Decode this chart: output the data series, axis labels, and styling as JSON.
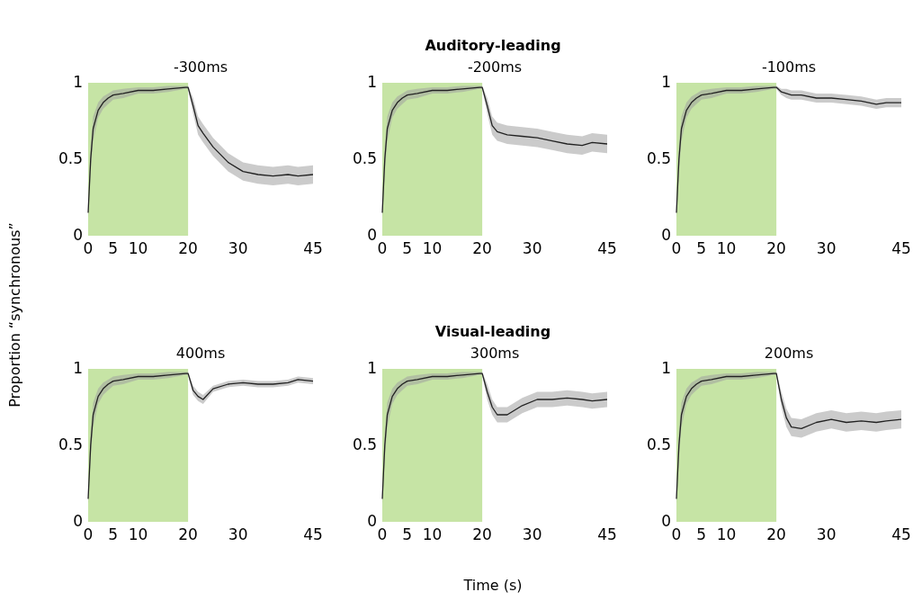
{
  "chart_data": [
    {
      "type": "line",
      "title": "-300ms",
      "annotations": [
        "Auditory-leading"
      ],
      "ylabel": "Proportion “synchronous”",
      "xlim": [
        0,
        45
      ],
      "xticks": [
        0,
        5,
        10,
        20,
        30,
        45
      ],
      "ylim": [
        0,
        1
      ],
      "yticks": [
        0,
        0.5,
        1
      ],
      "grid": false,
      "bands": [
        {
          "axis": "x",
          "from": 0,
          "to": 20,
          "color": "#c6e4a5"
        }
      ],
      "series": [
        {
          "color": "#222222",
          "x": [
            0,
            0.5,
            1,
            2,
            3,
            4,
            5,
            7,
            10,
            13,
            16,
            19.5,
            20,
            21,
            22,
            23,
            25,
            28,
            31,
            34,
            37,
            40,
            42,
            45
          ],
          "values": [
            0.15,
            0.5,
            0.7,
            0.82,
            0.87,
            0.9,
            0.92,
            0.93,
            0.95,
            0.95,
            0.96,
            0.97,
            0.97,
            0.85,
            0.72,
            0.67,
            0.58,
            0.48,
            0.42,
            0.4,
            0.39,
            0.4,
            0.39,
            0.4
          ],
          "lower": [
            0.12,
            0.42,
            0.62,
            0.77,
            0.83,
            0.86,
            0.89,
            0.9,
            0.93,
            0.93,
            0.94,
            0.96,
            0.96,
            0.8,
            0.66,
            0.61,
            0.52,
            0.42,
            0.36,
            0.34,
            0.33,
            0.34,
            0.33,
            0.34
          ],
          "upper": [
            0.18,
            0.58,
            0.78,
            0.87,
            0.91,
            0.93,
            0.95,
            0.96,
            0.97,
            0.97,
            0.98,
            0.98,
            0.98,
            0.9,
            0.78,
            0.73,
            0.64,
            0.54,
            0.48,
            0.46,
            0.45,
            0.46,
            0.45,
            0.46
          ]
        }
      ]
    },
    {
      "type": "line",
      "title": "-200ms",
      "xlim": [
        0,
        45
      ],
      "xticks": [
        0,
        5,
        10,
        20,
        30,
        45
      ],
      "ylim": [
        0,
        1
      ],
      "yticks": [
        0,
        0.5,
        1
      ],
      "grid": false,
      "bands": [
        {
          "axis": "x",
          "from": 0,
          "to": 20,
          "color": "#c6e4a5"
        }
      ],
      "series": [
        {
          "color": "#222222",
          "x": [
            0,
            0.5,
            1,
            2,
            3,
            4,
            5,
            7,
            10,
            13,
            16,
            19.5,
            20,
            21,
            22,
            23,
            25,
            28,
            31,
            34,
            37,
            40,
            42,
            45
          ],
          "values": [
            0.15,
            0.5,
            0.7,
            0.82,
            0.87,
            0.9,
            0.92,
            0.93,
            0.95,
            0.95,
            0.96,
            0.97,
            0.97,
            0.85,
            0.72,
            0.68,
            0.66,
            0.65,
            0.64,
            0.62,
            0.6,
            0.59,
            0.61,
            0.6
          ],
          "lower": [
            0.12,
            0.42,
            0.62,
            0.77,
            0.83,
            0.86,
            0.89,
            0.9,
            0.93,
            0.93,
            0.94,
            0.96,
            0.96,
            0.8,
            0.66,
            0.62,
            0.6,
            0.59,
            0.58,
            0.56,
            0.54,
            0.53,
            0.55,
            0.54
          ],
          "upper": [
            0.18,
            0.58,
            0.78,
            0.87,
            0.91,
            0.93,
            0.95,
            0.96,
            0.97,
            0.97,
            0.98,
            0.98,
            0.98,
            0.9,
            0.78,
            0.74,
            0.72,
            0.71,
            0.7,
            0.68,
            0.66,
            0.65,
            0.67,
            0.66
          ]
        }
      ]
    },
    {
      "type": "line",
      "title": "-100ms",
      "xlim": [
        0,
        45
      ],
      "xticks": [
        0,
        5,
        10,
        20,
        30,
        45
      ],
      "ylim": [
        0,
        1
      ],
      "yticks": [
        0,
        0.5,
        1
      ],
      "grid": false,
      "bands": [
        {
          "axis": "x",
          "from": 0,
          "to": 20,
          "color": "#c6e4a5"
        }
      ],
      "series": [
        {
          "color": "#222222",
          "x": [
            0,
            0.5,
            1,
            2,
            3,
            4,
            5,
            7,
            10,
            13,
            16,
            19.5,
            20,
            21,
            22,
            23,
            25,
            28,
            31,
            34,
            37,
            40,
            42,
            45
          ],
          "values": [
            0.15,
            0.5,
            0.7,
            0.82,
            0.87,
            0.9,
            0.92,
            0.93,
            0.95,
            0.95,
            0.96,
            0.97,
            0.97,
            0.94,
            0.93,
            0.92,
            0.92,
            0.9,
            0.9,
            0.89,
            0.88,
            0.86,
            0.87,
            0.87
          ],
          "lower": [
            0.12,
            0.42,
            0.62,
            0.77,
            0.83,
            0.86,
            0.89,
            0.9,
            0.93,
            0.93,
            0.94,
            0.96,
            0.96,
            0.92,
            0.9,
            0.89,
            0.89,
            0.87,
            0.87,
            0.86,
            0.85,
            0.83,
            0.84,
            0.84
          ],
          "upper": [
            0.18,
            0.58,
            0.78,
            0.87,
            0.91,
            0.93,
            0.95,
            0.96,
            0.97,
            0.97,
            0.98,
            0.98,
            0.98,
            0.96,
            0.96,
            0.95,
            0.95,
            0.93,
            0.93,
            0.92,
            0.91,
            0.89,
            0.9,
            0.9
          ]
        }
      ]
    },
    {
      "type": "line",
      "title": "400ms",
      "annotations": [
        "Visual-leading"
      ],
      "xlim": [
        0,
        45
      ],
      "xticks": [
        0,
        5,
        10,
        20,
        30,
        45
      ],
      "ylim": [
        0,
        1
      ],
      "yticks": [
        0,
        0.5,
        1
      ],
      "grid": false,
      "bands": [
        {
          "axis": "x",
          "from": 0,
          "to": 20,
          "color": "#c6e4a5"
        }
      ],
      "series": [
        {
          "color": "#222222",
          "x": [
            0,
            0.5,
            1,
            2,
            3,
            4,
            5,
            7,
            10,
            13,
            16,
            19.5,
            20,
            21,
            22,
            23,
            25,
            28,
            31,
            34,
            37,
            40,
            42,
            45
          ],
          "values": [
            0.15,
            0.5,
            0.7,
            0.82,
            0.87,
            0.9,
            0.92,
            0.93,
            0.95,
            0.95,
            0.96,
            0.97,
            0.97,
            0.86,
            0.82,
            0.8,
            0.87,
            0.9,
            0.91,
            0.9,
            0.9,
            0.91,
            0.93,
            0.92
          ],
          "lower": [
            0.12,
            0.42,
            0.62,
            0.77,
            0.83,
            0.86,
            0.89,
            0.9,
            0.93,
            0.93,
            0.94,
            0.96,
            0.96,
            0.83,
            0.79,
            0.77,
            0.85,
            0.88,
            0.89,
            0.88,
            0.88,
            0.89,
            0.91,
            0.9
          ],
          "upper": [
            0.18,
            0.58,
            0.78,
            0.87,
            0.91,
            0.93,
            0.95,
            0.96,
            0.97,
            0.97,
            0.98,
            0.98,
            0.98,
            0.89,
            0.85,
            0.83,
            0.89,
            0.92,
            0.93,
            0.92,
            0.92,
            0.93,
            0.95,
            0.94
          ]
        }
      ]
    },
    {
      "type": "line",
      "title": "300ms",
      "xlabel": "Time (s)",
      "xlim": [
        0,
        45
      ],
      "xticks": [
        0,
        5,
        10,
        20,
        30,
        45
      ],
      "ylim": [
        0,
        1
      ],
      "yticks": [
        0,
        0.5,
        1
      ],
      "grid": false,
      "bands": [
        {
          "axis": "x",
          "from": 0,
          "to": 20,
          "color": "#c6e4a5"
        }
      ],
      "series": [
        {
          "color": "#222222",
          "x": [
            0,
            0.5,
            1,
            2,
            3,
            4,
            5,
            7,
            10,
            13,
            16,
            19.5,
            20,
            21,
            22,
            23,
            25,
            28,
            31,
            34,
            37,
            40,
            42,
            45
          ],
          "values": [
            0.15,
            0.5,
            0.7,
            0.82,
            0.87,
            0.9,
            0.92,
            0.93,
            0.95,
            0.95,
            0.96,
            0.97,
            0.97,
            0.85,
            0.75,
            0.7,
            0.7,
            0.76,
            0.8,
            0.8,
            0.81,
            0.8,
            0.79,
            0.8
          ],
          "lower": [
            0.12,
            0.42,
            0.62,
            0.77,
            0.83,
            0.86,
            0.89,
            0.9,
            0.93,
            0.93,
            0.94,
            0.96,
            0.96,
            0.8,
            0.7,
            0.65,
            0.65,
            0.71,
            0.75,
            0.75,
            0.76,
            0.75,
            0.74,
            0.75
          ],
          "upper": [
            0.18,
            0.58,
            0.78,
            0.87,
            0.91,
            0.93,
            0.95,
            0.96,
            0.97,
            0.97,
            0.98,
            0.98,
            0.98,
            0.9,
            0.8,
            0.75,
            0.75,
            0.81,
            0.85,
            0.85,
            0.86,
            0.85,
            0.84,
            0.85
          ]
        }
      ]
    },
    {
      "type": "line",
      "title": "200ms",
      "xlim": [
        0,
        45
      ],
      "xticks": [
        0,
        5,
        10,
        20,
        30,
        45
      ],
      "ylim": [
        0,
        1
      ],
      "yticks": [
        0,
        0.5,
        1
      ],
      "grid": false,
      "bands": [
        {
          "axis": "x",
          "from": 0,
          "to": 20,
          "color": "#c6e4a5"
        }
      ],
      "series": [
        {
          "color": "#222222",
          "x": [
            0,
            0.5,
            1,
            2,
            3,
            4,
            5,
            7,
            10,
            13,
            16,
            19.5,
            20,
            21,
            22,
            23,
            25,
            28,
            31,
            34,
            37,
            40,
            42,
            45
          ],
          "values": [
            0.15,
            0.5,
            0.7,
            0.82,
            0.87,
            0.9,
            0.92,
            0.93,
            0.95,
            0.95,
            0.96,
            0.97,
            0.97,
            0.8,
            0.68,
            0.62,
            0.61,
            0.65,
            0.67,
            0.65,
            0.66,
            0.65,
            0.66,
            0.67
          ],
          "lower": [
            0.12,
            0.42,
            0.62,
            0.77,
            0.83,
            0.86,
            0.89,
            0.9,
            0.93,
            0.93,
            0.94,
            0.96,
            0.96,
            0.75,
            0.62,
            0.56,
            0.55,
            0.59,
            0.61,
            0.59,
            0.6,
            0.59,
            0.6,
            0.61
          ],
          "upper": [
            0.18,
            0.58,
            0.78,
            0.87,
            0.91,
            0.93,
            0.95,
            0.96,
            0.97,
            0.97,
            0.98,
            0.98,
            0.98,
            0.85,
            0.74,
            0.68,
            0.67,
            0.71,
            0.73,
            0.71,
            0.72,
            0.71,
            0.72,
            0.73
          ]
        }
      ]
    }
  ]
}
